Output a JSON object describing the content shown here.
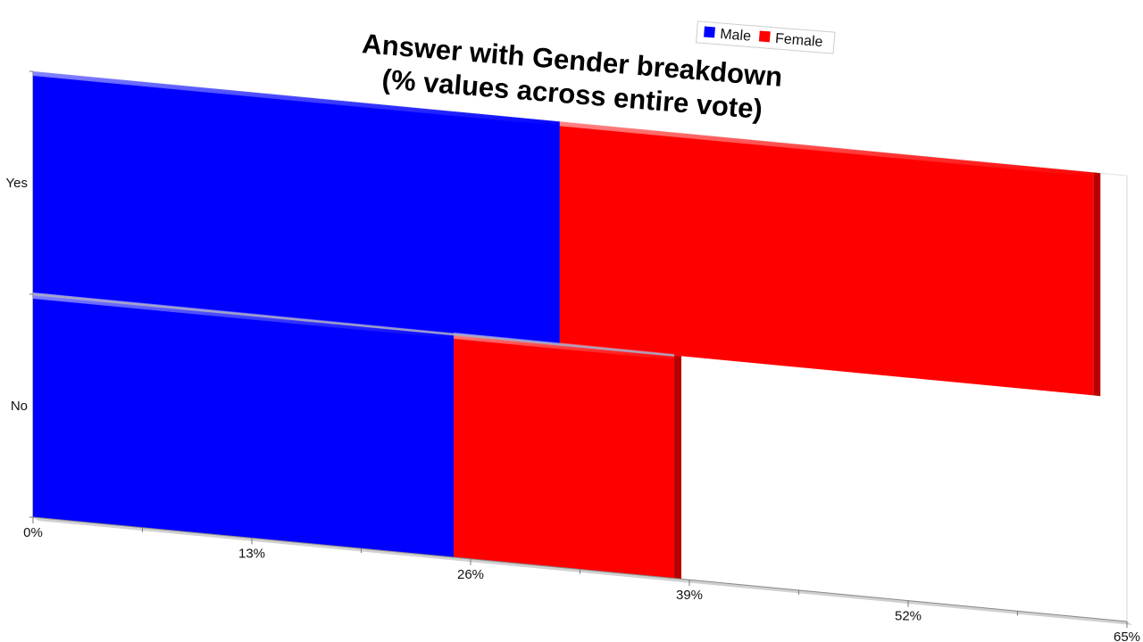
{
  "chart_data": {
    "type": "bar",
    "orientation": "horizontal",
    "stacked": true,
    "title_lines": [
      "Answer with Gender breakdown",
      "(% values across entire vote)"
    ],
    "categories": [
      "Yes",
      "No"
    ],
    "series": [
      {
        "name": "Male",
        "color": "#0000ff",
        "values": [
          31.3,
          25.0
        ]
      },
      {
        "name": "Female",
        "color": "#ff0000",
        "values": [
          31.7,
          13.1
        ]
      }
    ],
    "xlim": [
      0,
      65
    ],
    "x_ticks": [
      0,
      13,
      26,
      39,
      52,
      65
    ],
    "x_tick_labels": [
      "0%",
      "13%",
      "26%",
      "39%",
      "52%",
      "65%"
    ],
    "legend_position": "top-right",
    "grid": false,
    "rendering": "3d-perspective"
  }
}
